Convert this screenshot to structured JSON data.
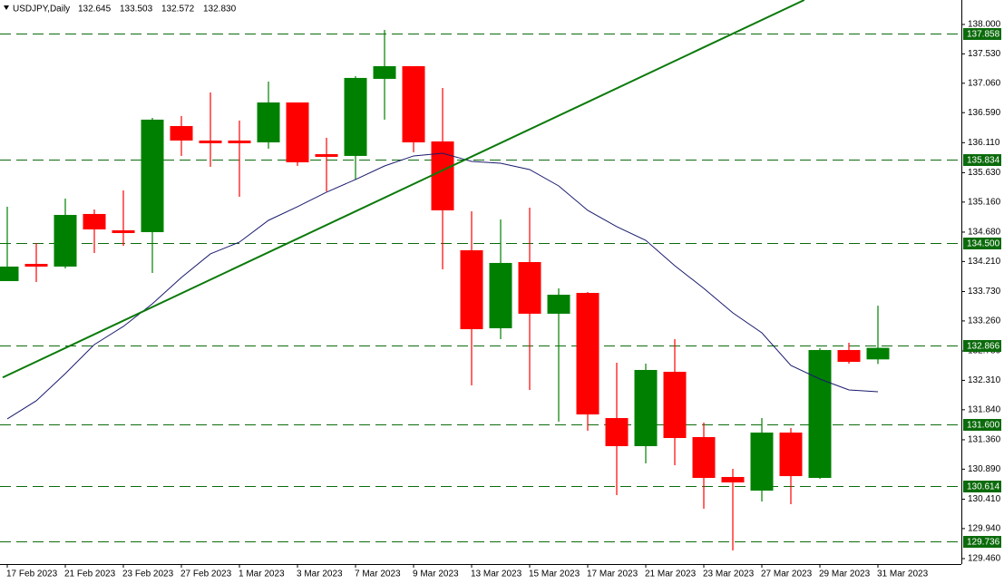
{
  "chart_data": {
    "type": "candlestick",
    "title": "USDJPY,Daily",
    "header_values": [
      "132.645",
      "133.503",
      "132.572",
      "132.830"
    ],
    "categories": [
      "17 Feb 2023",
      null,
      "21 Feb 2023",
      null,
      "23 Feb 2023",
      null,
      "27 Feb 2023",
      null,
      "1 Mar 2023",
      null,
      "3 Mar 2023",
      null,
      "7 Mar 2023",
      null,
      "9 Mar 2023",
      null,
      "13 Mar 2023",
      null,
      "15 Mar 2023",
      null,
      "17 Mar 2023",
      null,
      "21 Mar 2023",
      null,
      "23 Mar 2023",
      null,
      "27 Mar 2023",
      null,
      "29 Mar 2023",
      null,
      "31 Mar 2023"
    ],
    "open": [
      133.897,
      134.172,
      134.129,
      134.97,
      134.709,
      134.68,
      136.376,
      136.144,
      136.144,
      136.115,
      136.753,
      135.927,
      135.898,
      137.13,
      137.333,
      136.13,
      134.39,
      133.143,
      134.201,
      133.375,
      133.708,
      131.707,
      131.258,
      132.447,
      131.403,
      130.765,
      130.547,
      131.475,
      130.75,
      132.795,
      132.645
    ],
    "high": [
      135.086,
      134.506,
      135.216,
      135.042,
      135.347,
      136.507,
      136.536,
      136.913,
      136.463,
      137.087,
      136.753,
      136.188,
      137.174,
      137.913,
      137.333,
      136.985,
      135.013,
      134.883,
      135.071,
      133.781,
      133.723,
      132.592,
      132.577,
      132.969,
      131.635,
      130.895,
      131.707,
      131.548,
      132.824,
      132.911,
      133.503
    ],
    "low": [
      133.897,
      133.882,
      134.1,
      134.346,
      134.462,
      134.027,
      135.898,
      135.724,
      135.245,
      136.014,
      135.738,
      135.332,
      135.521,
      136.478,
      135.956,
      134.085,
      132.229,
      132.969,
      132.157,
      131.649,
      131.504,
      130.475,
      130.983,
      130.954,
      130.258,
      129.591,
      130.373,
      130.33,
      130.736,
      132.577,
      132.572
    ],
    "close": [
      134.129,
      134.158,
      134.955,
      134.723,
      134.665,
      136.478,
      136.144,
      136.115,
      136.101,
      136.753,
      135.796,
      135.883,
      137.145,
      137.333,
      136.115,
      135.028,
      133.128,
      134.187,
      133.375,
      133.679,
      131.765,
      131.258,
      132.476,
      131.388,
      130.75,
      130.678,
      131.475,
      130.779,
      132.795,
      132.606,
      132.83
    ],
    "up_color": "#008000",
    "down_color": "#ff0000",
    "moving_average": {
      "color": "#1a1a6e",
      "values": [
        131.693,
        131.983,
        132.418,
        132.882,
        133.172,
        133.534,
        133.955,
        134.332,
        134.52,
        134.868,
        135.086,
        135.318,
        135.521,
        135.738,
        135.898,
        135.941,
        135.811,
        135.782,
        135.68,
        135.419,
        135.028,
        134.767,
        134.549,
        134.143,
        133.781,
        133.389,
        133.07,
        132.548,
        132.331,
        132.157,
        132.128
      ]
    },
    "trend_line": {
      "color": "#0a7a0a",
      "at": [
        0,
        27
      ],
      "values": [
        132.39,
        138.29
      ]
    },
    "levels": {
      "color": "#0b6b0b",
      "values": [
        {
          "value": 137.858,
          "label": "137.858"
        },
        {
          "value": 135.834,
          "label": "135.834"
        },
        {
          "value": 134.5,
          "label": "134.500"
        },
        {
          "value": 132.866,
          "label": "132.866"
        },
        {
          "value": 131.6,
          "label": "131.600"
        },
        {
          "value": 130.614,
          "label": "130.614"
        },
        {
          "value": 129.736,
          "label": "129.736"
        }
      ]
    },
    "ylim": [
      129.373,
      138.391
    ],
    "yticks": [
      {
        "value": 138,
        "label": "138.000"
      },
      {
        "value": 137.53,
        "label": "137.530"
      },
      {
        "value": 137.06,
        "label": "137.060"
      },
      {
        "value": 136.59,
        "label": "136.590"
      },
      {
        "value": 136.11,
        "label": "136.110"
      },
      {
        "value": 135.63,
        "label": "135.630"
      },
      {
        "value": 135.16,
        "label": "135.160"
      },
      {
        "value": 134.68,
        "label": "134.680"
      },
      {
        "value": 134.21,
        "label": "134.210"
      },
      {
        "value": 133.73,
        "label": "133.730"
      },
      {
        "value": 133.26,
        "label": "133.260"
      },
      {
        "value": 132.78,
        "label": "132.780"
      },
      {
        "value": 132.31,
        "label": "132.310"
      },
      {
        "value": 131.84,
        "label": "131.840"
      },
      {
        "value": 131.36,
        "label": "131.360"
      },
      {
        "value": 130.89,
        "label": "130.890"
      },
      {
        "value": 130.41,
        "label": "130.410"
      },
      {
        "value": 129.94,
        "label": "129.940"
      },
      {
        "value": 129.46,
        "label": "129.460"
      }
    ]
  }
}
